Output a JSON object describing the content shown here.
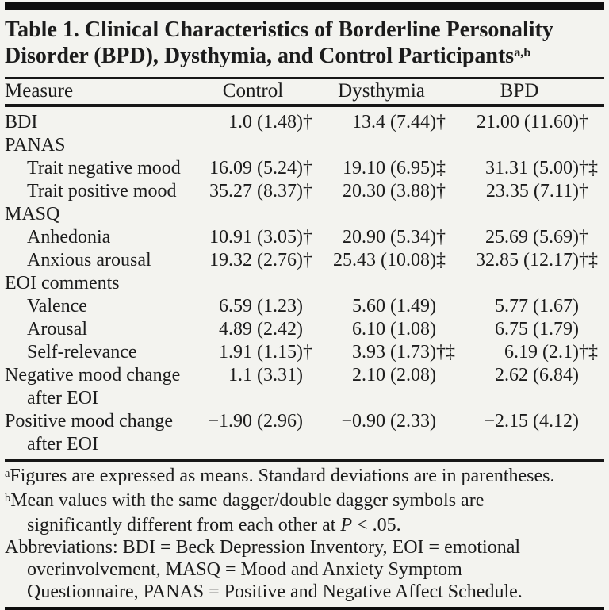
{
  "title": {
    "line1": "Table 1. Clinical Characteristics of Borderline Personality",
    "line2": "Disorder (BPD), Dysthymia, and Control Participants",
    "sup": "a,b"
  },
  "table": {
    "columns": [
      "Measure",
      "Control",
      "Dysthymia",
      "BPD"
    ],
    "rows": [
      {
        "label": "BDI",
        "indent": false,
        "cells": [
          {
            "v": "1.0 (1.48)",
            "m": "†"
          },
          {
            "v": "13.4 (7.44)",
            "m": "†"
          },
          {
            "v": "21.00 (11.60)",
            "m": "†"
          }
        ]
      },
      {
        "label": "PANAS",
        "indent": false,
        "cells": []
      },
      {
        "label": "Trait negative mood",
        "indent": true,
        "cells": [
          {
            "v": "16.09 (5.24)",
            "m": "†"
          },
          {
            "v": "19.10 (6.95)",
            "m": "‡"
          },
          {
            "v": "31.31 (5.00)",
            "m": "†‡"
          }
        ]
      },
      {
        "label": "Trait positive mood",
        "indent": true,
        "cells": [
          {
            "v": "35.27 (8.37)",
            "m": "†"
          },
          {
            "v": "20.30 (3.88)",
            "m": "†"
          },
          {
            "v": "23.35 (7.11)",
            "m": "†"
          }
        ]
      },
      {
        "label": "MASQ",
        "indent": false,
        "cells": []
      },
      {
        "label": "Anhedonia",
        "indent": true,
        "cells": [
          {
            "v": "10.91 (3.05)",
            "m": "†"
          },
          {
            "v": "20.90 (5.34)",
            "m": "†"
          },
          {
            "v": "25.69 (5.69)",
            "m": "†"
          }
        ]
      },
      {
        "label": "Anxious arousal",
        "indent": true,
        "cells": [
          {
            "v": "19.32 (2.76)",
            "m": "†"
          },
          {
            "v": "25.43 (10.08)",
            "m": "‡"
          },
          {
            "v": "32.85 (12.17)",
            "m": "†‡"
          }
        ]
      },
      {
        "label": "EOI comments",
        "indent": false,
        "cells": []
      },
      {
        "label": "Valence",
        "indent": true,
        "cells": [
          {
            "v": "6.59 (1.23)",
            "m": ""
          },
          {
            "v": "5.60 (1.49)",
            "m": ""
          },
          {
            "v": "5.77 (1.67)",
            "m": ""
          }
        ]
      },
      {
        "label": "Arousal",
        "indent": true,
        "cells": [
          {
            "v": "4.89 (2.42)",
            "m": ""
          },
          {
            "v": "6.10 (1.08)",
            "m": ""
          },
          {
            "v": "6.75 (1.79)",
            "m": ""
          }
        ]
      },
      {
        "label": "Self-relevance",
        "indent": true,
        "cells": [
          {
            "v": "1.91 (1.15)",
            "m": "†"
          },
          {
            "v": "3.93 (1.73)",
            "m": "†‡"
          },
          {
            "v": "6.19 (2.1)",
            "m": "†‡"
          }
        ]
      },
      {
        "label": "Negative mood change",
        "label2": "after EOI",
        "indent": false,
        "cells": [
          {
            "v": "1.1 (3.31)",
            "m": ""
          },
          {
            "v": "2.10 (2.08)",
            "m": ""
          },
          {
            "v": "2.62 (6.84)",
            "m": ""
          }
        ]
      },
      {
        "label": "Positive mood change",
        "label2": "after EOI",
        "indent": false,
        "cells": [
          {
            "v": "−1.90 (2.96)",
            "m": ""
          },
          {
            "v": "−0.90 (2.33)",
            "m": ""
          },
          {
            "v": "−2.15 (4.12)",
            "m": ""
          }
        ]
      }
    ]
  },
  "footnotes": {
    "a": {
      "sup": "a",
      "line1": "Figures are expressed as means. Standard deviations are in parentheses."
    },
    "b": {
      "sup": "b",
      "line1": "Mean values with the same dagger/double dagger symbols are",
      "line2_pre": "significantly different from each other at ",
      "line2_italic": "P",
      "line2_post": " < .05."
    },
    "abbr": {
      "line1": "Abbreviations: BDI = Beck Depression Inventory, EOI = emotional",
      "line2": "overinvolvement, MASQ = Mood and Anxiety Symptom",
      "line3": "Questionnaire, PANAS = Positive and Negative Affect Schedule."
    }
  },
  "colors": {
    "background": "#f3f3ef",
    "text": "#1c1c1c",
    "rule": "#161616"
  }
}
